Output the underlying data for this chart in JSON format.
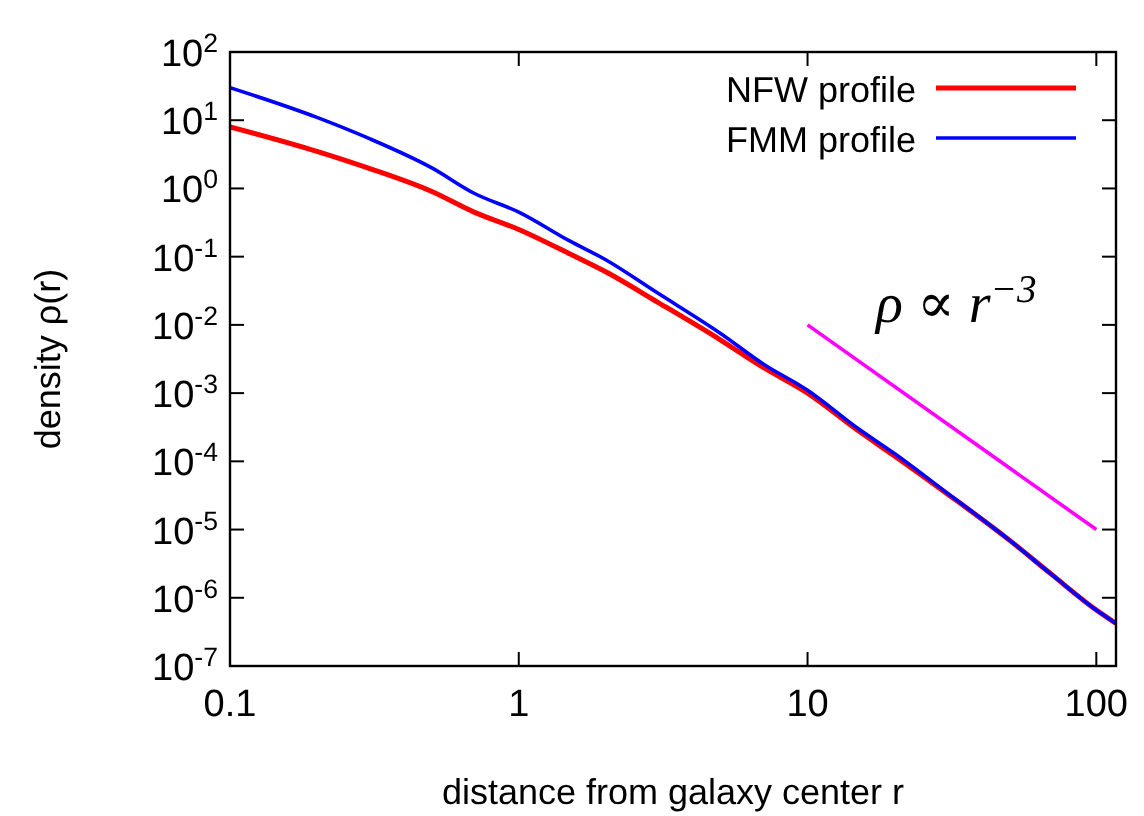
{
  "chart_data": {
    "type": "line",
    "xlabel": "distance from galaxy center r",
    "ylabel": "density ρ(r)",
    "log": "xy",
    "xlim": [
      0.1,
      117
    ],
    "ylim": [
      1e-07,
      100
    ],
    "xticks": [
      0.1,
      1,
      10,
      100
    ],
    "yticks": [
      {
        "value": 1e-07,
        "label": "10$^{-7}$"
      },
      {
        "value": 1e-06,
        "label": "10$^{-6}$"
      },
      {
        "value": 1e-05,
        "label": "10$^{-5}$"
      },
      {
        "value": 0.0001,
        "label": "10$^{-4}$"
      },
      {
        "value": 0.001,
        "label": "10$^{-3}$"
      },
      {
        "value": 0.01,
        "label": "10$^{-2}$"
      },
      {
        "value": 0.1,
        "label": "10$^{-1}$"
      },
      {
        "value": 1,
        "label": "10$^{0}$"
      },
      {
        "value": 10,
        "label": "10$^{1}$"
      },
      {
        "value": 100,
        "label": "10$^{2}$"
      }
    ],
    "x": [
      0.1,
      0.2,
      0.3,
      0.5,
      0.7,
      1,
      1.5,
      2,
      3,
      5,
      7,
      10,
      15,
      20,
      30,
      50,
      70,
      100,
      117
    ],
    "series": [
      {
        "name": "NFW profile",
        "color": "#ff0000",
        "values": [
          8,
          3.5,
          2,
          0.9,
          0.45,
          0.25,
          0.11,
          0.06,
          0.022,
          0.006,
          0.0024,
          0.001,
          0.00028,
          0.00012,
          3.5e-05,
          7e-06,
          2.2e-06,
          6.6e-07,
          4.2e-07
        ]
      },
      {
        "name": "FMM profile",
        "color": "#0000ff",
        "values": [
          30,
          11,
          5.5,
          2,
          0.85,
          0.45,
          0.17,
          0.09,
          0.03,
          0.0075,
          0.0027,
          0.0011,
          0.0003,
          0.00013,
          3.6e-05,
          7e-06,
          2.2e-06,
          6.6e-07,
          4.2e-07
        ]
      },
      {
        "color": "#ff00ff",
        "x": [
          10,
          100
        ],
        "values": [
          0.01,
          1e-05
        ]
      }
    ],
    "legend": "top right",
    "annotations": [
      "ρ ∝ r$^{−3}$"
    ]
  }
}
